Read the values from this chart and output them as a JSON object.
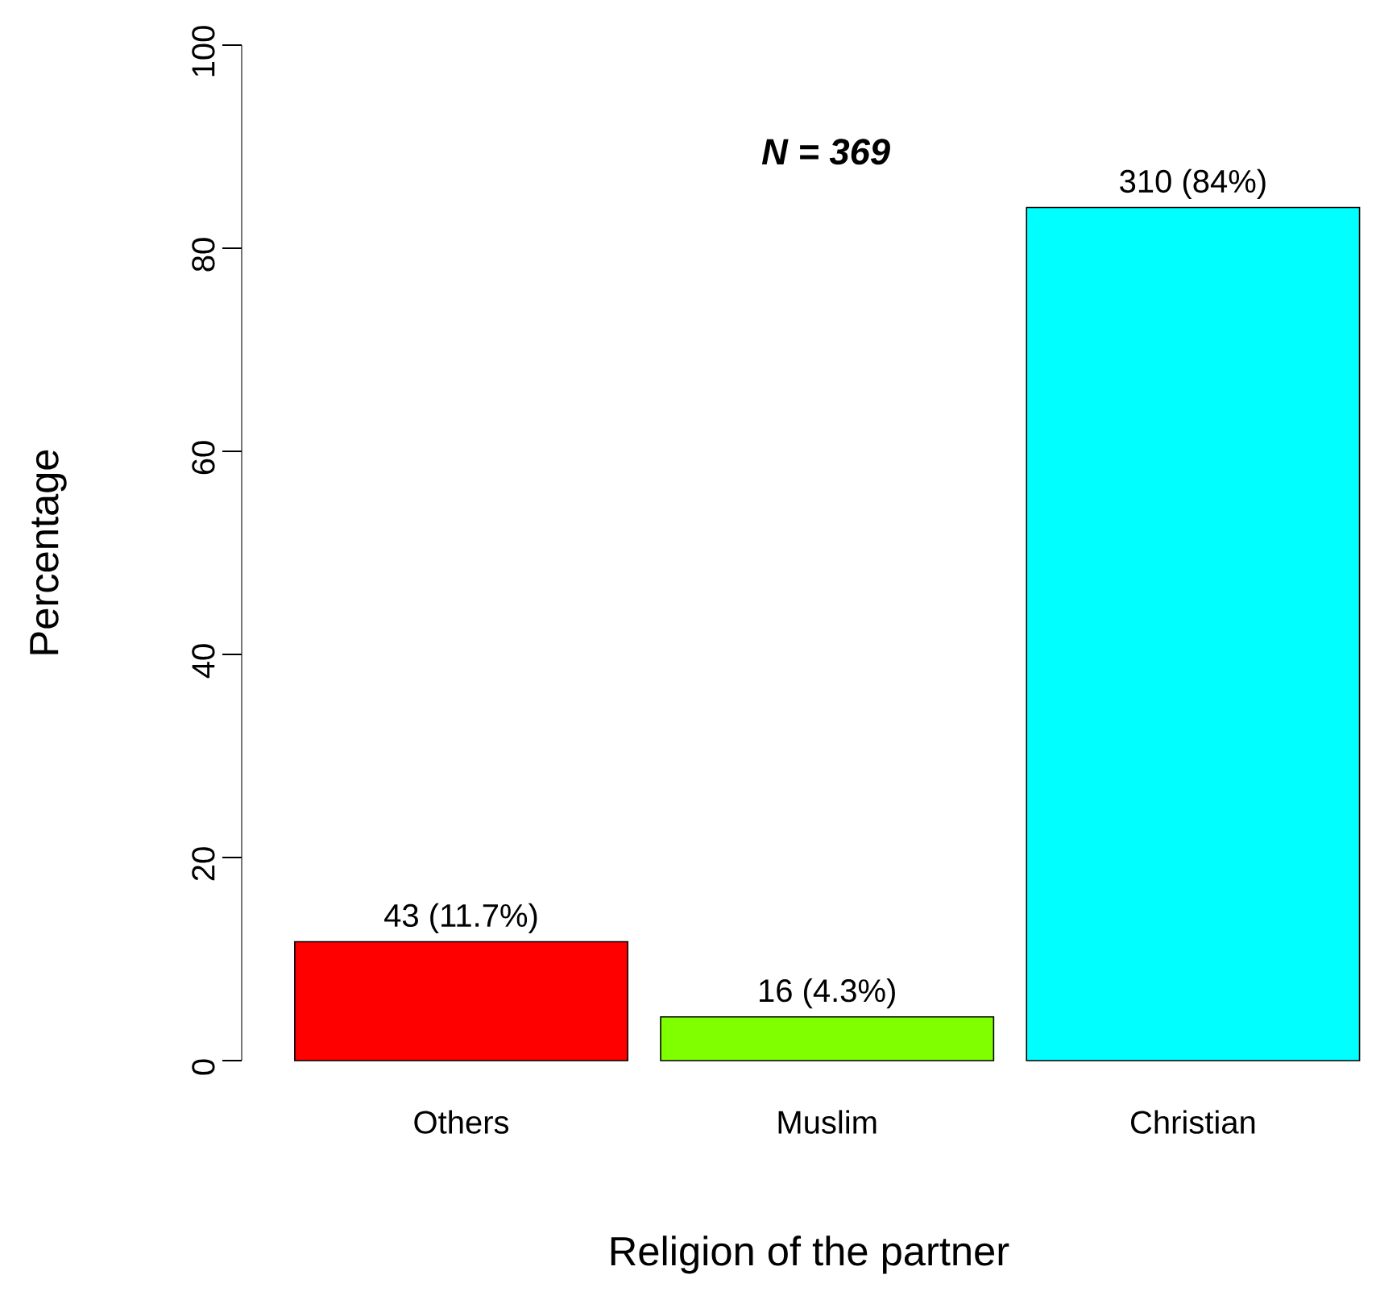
{
  "chart_data": {
    "type": "bar",
    "xlabel": "Religion of the partner",
    "ylabel": "Percentage",
    "annotations": [
      "N = 369"
    ],
    "categories": [
      "Others",
      "Muslim",
      "Christian"
    ],
    "values": [
      11.7,
      4.3,
      84
    ],
    "colors": [
      "#ff0000",
      "#7fff00",
      "#00ffff"
    ],
    "value_labels": [
      "43 (11.7%)",
      "16 (4.3%)",
      "310 (84%)"
    ],
    "ylim": [
      0,
      100
    ],
    "yticks": [
      0,
      20,
      40,
      60,
      80,
      100
    ]
  }
}
